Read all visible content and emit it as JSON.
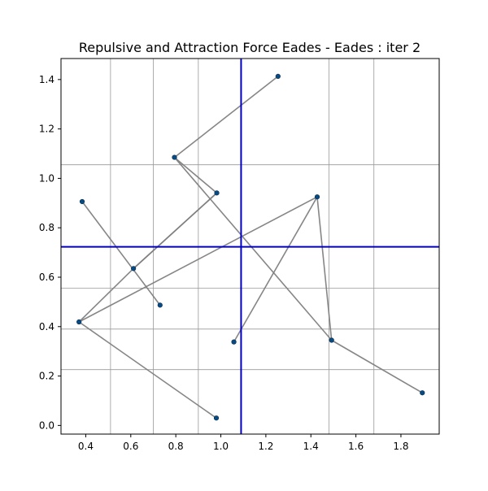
{
  "chart_data": {
    "type": "scatter",
    "title": "Repulsive and Attraction Force Eades - Eades : iter 2",
    "xlabel": "",
    "ylabel": "",
    "xlim": [
      0.29,
      1.97
    ],
    "ylim": [
      -0.035,
      1.485
    ],
    "x_ticks": [
      0.4,
      0.6,
      0.8,
      1.0,
      1.2,
      1.4,
      1.6,
      1.8
    ],
    "x_tick_labels": [
      "0.4",
      "0.6",
      "0.8",
      "1.0",
      "1.2",
      "1.4",
      "1.6",
      "1.8"
    ],
    "y_ticks": [
      0.0,
      0.2,
      0.4,
      0.6,
      0.8,
      1.0,
      1.2,
      1.4
    ],
    "y_tick_labels": [
      "0.0",
      "0.2",
      "0.4",
      "0.6",
      "0.8",
      "1.0",
      "1.2",
      "1.4"
    ],
    "grid": true,
    "grid_x": [
      0.51,
      0.7,
      0.9,
      1.09,
      1.48,
      1.68
    ],
    "grid_y": [
      0.226,
      0.39,
      0.556,
      1.055
    ],
    "split_lines": {
      "x": 1.09,
      "y": 0.723,
      "color": "#0000cc"
    },
    "nodes": [
      {
        "x": 1.254,
        "y": 1.413
      },
      {
        "x": 0.794,
        "y": 1.085
      },
      {
        "x": 0.982,
        "y": 0.941
      },
      {
        "x": 0.384,
        "y": 0.906
      },
      {
        "x": 1.428,
        "y": 0.925
      },
      {
        "x": 0.612,
        "y": 0.635
      },
      {
        "x": 0.73,
        "y": 0.487
      },
      {
        "x": 0.37,
        "y": 0.419
      },
      {
        "x": 1.058,
        "y": 0.338
      },
      {
        "x": 1.492,
        "y": 0.345
      },
      {
        "x": 1.895,
        "y": 0.132
      },
      {
        "x": 0.98,
        "y": 0.03
      }
    ],
    "edges": [
      [
        0,
        1
      ],
      [
        1,
        2
      ],
      [
        1,
        9
      ],
      [
        9,
        10
      ],
      [
        2,
        5
      ],
      [
        2,
        5
      ],
      [
        3,
        6
      ],
      [
        5,
        7
      ],
      [
        7,
        4
      ],
      [
        4,
        9
      ],
      [
        4,
        8
      ],
      [
        7,
        11
      ]
    ],
    "node_color": "#084b83",
    "edge_color": "#808080"
  }
}
